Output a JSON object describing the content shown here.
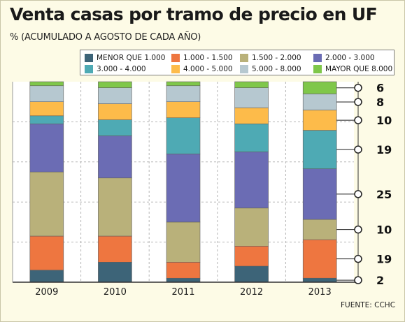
{
  "header": {
    "title": "Venta casas por tramo de precio en UF",
    "subtitle": "% (ACUMULADO A AGOSTO DE CADA AÑO)"
  },
  "footer": {
    "source": "FUENTE: CCHC"
  },
  "chart_data": {
    "type": "bar",
    "stacked": true,
    "title": "Venta casas por tramo de precio en UF",
    "subtitle": "% (ACUMULADO A AGOSTO DE CADA AÑO)",
    "xlabel": "",
    "ylabel": "",
    "ylim": [
      0,
      100
    ],
    "grid": "horizontal",
    "legend_position": "top",
    "categories": [
      "2009",
      "2010",
      "2011",
      "2012",
      "2013"
    ],
    "series": [
      {
        "name": "MENOR QUE 1.000",
        "color": "#3d6478",
        "values": [
          6,
          10,
          2,
          8,
          2
        ]
      },
      {
        "name": "1.000 - 1.500",
        "color": "#ee7640",
        "values": [
          17,
          13,
          8,
          10,
          19
        ]
      },
      {
        "name": "1.500 - 2.000",
        "color": "#b9b17a",
        "values": [
          32,
          29,
          20,
          19,
          10
        ]
      },
      {
        "name": "2.000 - 3.000",
        "color": "#6b6cb4",
        "values": [
          24,
          21,
          34,
          28,
          25
        ]
      },
      {
        "name": "3.000 - 4.000",
        "color": "#4eaab4",
        "values": [
          4,
          8,
          18,
          14,
          19
        ]
      },
      {
        "name": "4.000 - 5.000",
        "color": "#fdbb4a",
        "values": [
          7,
          8,
          8,
          8,
          10
        ]
      },
      {
        "name": "5.000 - 8.000",
        "color": "#b6c8d0",
        "values": [
          8,
          8,
          8,
          10,
          8
        ]
      },
      {
        "name": "MAYOR QUE 8.000",
        "color": "#7fc74a",
        "values": [
          2,
          3,
          2,
          3,
          6
        ]
      }
    ],
    "value_labels": {
      "category": "2013",
      "labels": [
        "2",
        "19",
        "10",
        "25",
        "19",
        "10",
        "8",
        "6"
      ]
    }
  }
}
